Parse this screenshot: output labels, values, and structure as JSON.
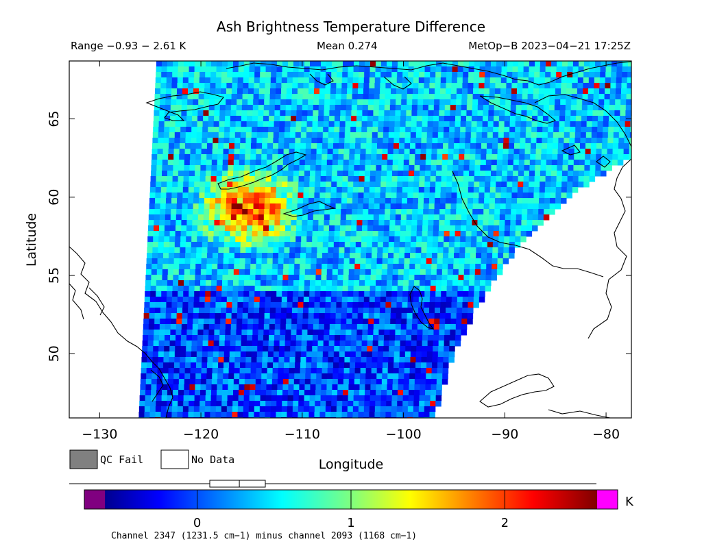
{
  "header": {
    "title": "Ash Brightness Temperature Difference",
    "range": "Range −0.93 − 2.61 K",
    "mean": "Mean 0.274",
    "satellite": "MetOp−B 2023−04−21 17:25Z"
  },
  "map": {
    "x_axis_label": "Longitude",
    "y_axis_label": "Latitude",
    "x_ticks": [
      "−130",
      "−120",
      "−110",
      "−100",
      "−90",
      "−80"
    ],
    "y_ticks": [
      "50",
      "55",
      "60",
      "65"
    ],
    "lon_range": [
      -133,
      -77.5
    ],
    "lat_range": [
      45.9,
      68.7
    ]
  },
  "legend": {
    "qc_fail_label": "QC Fail",
    "no_data_label": "No Data",
    "qc_fail_color": "#808080",
    "no_data_color": "#ffffff"
  },
  "colorbar": {
    "unit": "K",
    "ticks": [
      "0",
      "1",
      "2"
    ],
    "tick_values": [
      0,
      1,
      2
    ],
    "range": [
      -0.6,
      2.6
    ],
    "mean": 0.274,
    "underflow_color": "#800080",
    "overflow_color": "#ff00ff",
    "caption": "Channel 2347 (1231.5 cm−1) minus channel 2093 (1168 cm−1)"
  }
}
